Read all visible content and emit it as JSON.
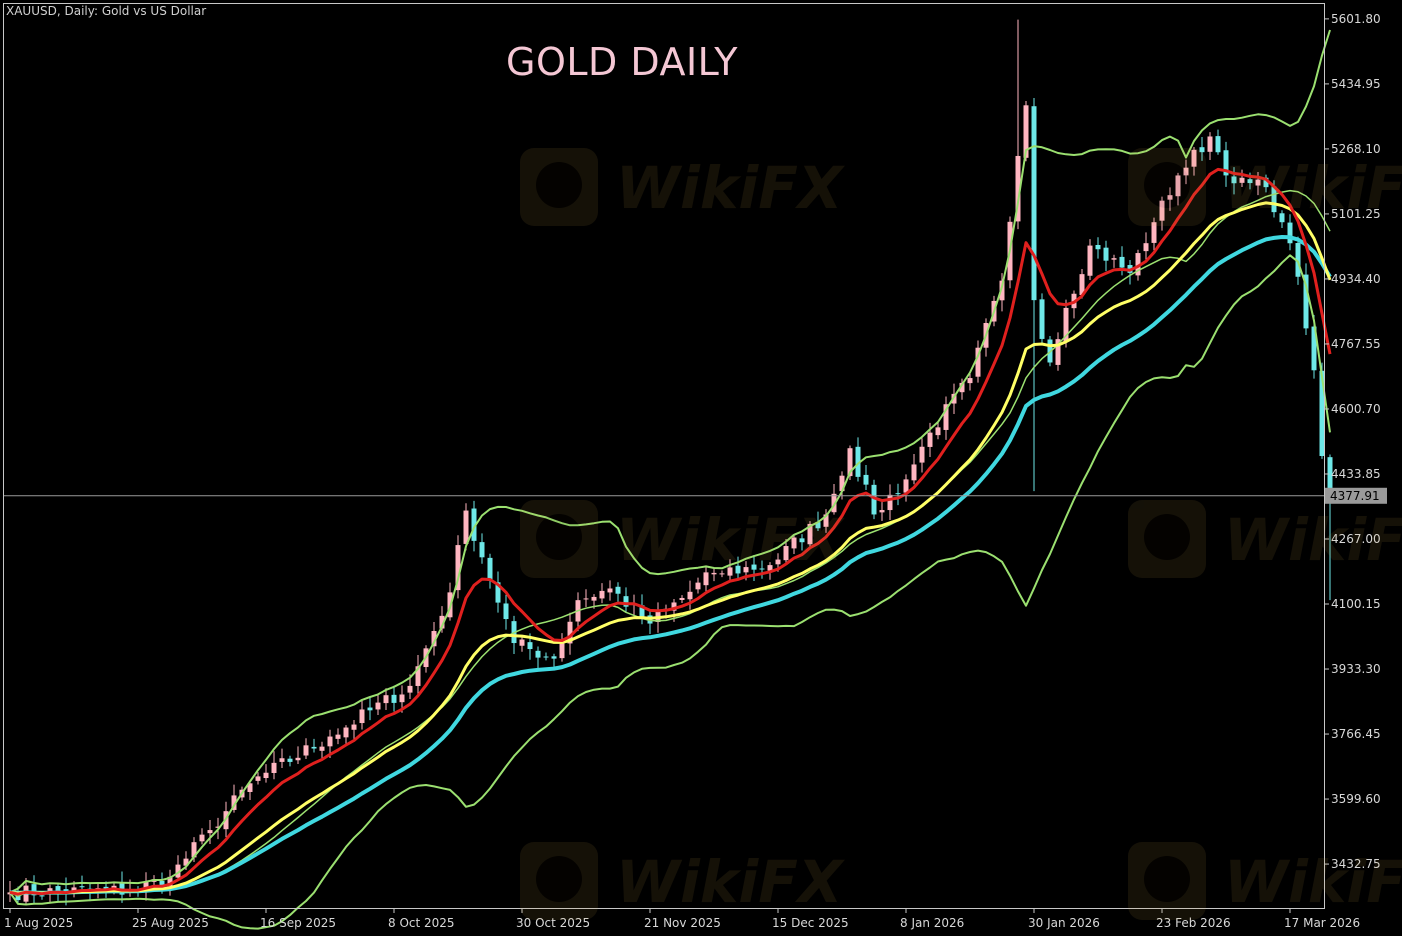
{
  "header": {
    "symbol_line": "XAUUSD, Daily:  Gold vs US Dollar"
  },
  "title": "GOLD DAILY",
  "watermark": {
    "text": "WikiFX"
  },
  "colors": {
    "background": "#000000",
    "frame": "#c8c8c8",
    "candle_up": "#ffb6c1",
    "candle_down": "#6ee8e8",
    "ema_fast": "#e0201e",
    "ema_mid": "#ffff66",
    "ema_slow": "#40d8e0",
    "bollinger": "#9be070",
    "price_line": "#9a9a9a",
    "price_label_bg": "#9a9a9a"
  },
  "chart_data": {
    "type": "candlestick",
    "symbol": "XAUUSD",
    "timeframe": "Daily",
    "ylim": [
      3320,
      5640
    ],
    "y_ticks": [
      "5601.80",
      "5434.95",
      "5268.10",
      "5101.25",
      "4934.40",
      "4767.55",
      "4600.70",
      "4433.85",
      "4267.00",
      "4100.15",
      "3933.30",
      "3766.45",
      "3599.60",
      "3432.75"
    ],
    "x_tick_labels": [
      "1 Aug 2025",
      "25 Aug 2025",
      "16 Sep 2025",
      "8 Oct 2025",
      "30 Oct 2025",
      "21 Nov 2025",
      "15 Dec 2025",
      "8 Jan 2026",
      "30 Jan 2026",
      "23 Feb 2026",
      "17 Mar 2026"
    ],
    "current_price": "4377.91",
    "current_price_value": 4377.91,
    "bars": 166,
    "key_closes": [
      {
        "bar": 0,
        "close": 3360
      },
      {
        "bar": 15,
        "close": 3365
      },
      {
        "bar": 20,
        "close": 3400
      },
      {
        "bar": 25,
        "close": 3520
      },
      {
        "bar": 30,
        "close": 3640
      },
      {
        "bar": 40,
        "close": 3760
      },
      {
        "bar": 50,
        "close": 3890
      },
      {
        "bar": 55,
        "close": 4130
      },
      {
        "bar": 57,
        "close": 4340
      },
      {
        "bar": 59,
        "close": 4220
      },
      {
        "bar": 63,
        "close": 4000
      },
      {
        "bar": 68,
        "close": 3960
      },
      {
        "bar": 71,
        "close": 4110
      },
      {
        "bar": 75,
        "close": 4140
      },
      {
        "bar": 80,
        "close": 4050
      },
      {
        "bar": 88,
        "close": 4180
      },
      {
        "bar": 95,
        "close": 4200
      },
      {
        "bar": 102,
        "close": 4330
      },
      {
        "bar": 105,
        "close": 4500
      },
      {
        "bar": 108,
        "close": 4330
      },
      {
        "bar": 112,
        "close": 4420
      },
      {
        "bar": 115,
        "close": 4540
      },
      {
        "bar": 120,
        "close": 4680
      },
      {
        "bar": 124,
        "close": 4930
      },
      {
        "bar": 126,
        "close": 5250
      },
      {
        "bar": 127,
        "close": 5380
      },
      {
        "bar": 128,
        "close": 4880
      },
      {
        "bar": 130,
        "close": 4720
      },
      {
        "bar": 132,
        "close": 4860
      },
      {
        "bar": 135,
        "close": 5020
      },
      {
        "bar": 140,
        "close": 4950
      },
      {
        "bar": 143,
        "close": 5080
      },
      {
        "bar": 146,
        "close": 5200
      },
      {
        "bar": 150,
        "close": 5300
      },
      {
        "bar": 153,
        "close": 5180
      },
      {
        "bar": 157,
        "close": 5170
      },
      {
        "bar": 159,
        "close": 5080
      },
      {
        "bar": 161,
        "close": 4940
      },
      {
        "bar": 163,
        "close": 4700
      },
      {
        "bar": 164,
        "close": 4480
      },
      {
        "bar": 165,
        "close": 4378
      }
    ],
    "indicators": [
      {
        "color": "#e0201e",
        "kind": "EMA fast"
      },
      {
        "color": "#ffff66",
        "kind": "EMA mid"
      },
      {
        "color": "#40d8e0",
        "kind": "EMA slow"
      },
      {
        "color": "#9be070",
        "kind": "Bollinger Bands"
      }
    ]
  }
}
